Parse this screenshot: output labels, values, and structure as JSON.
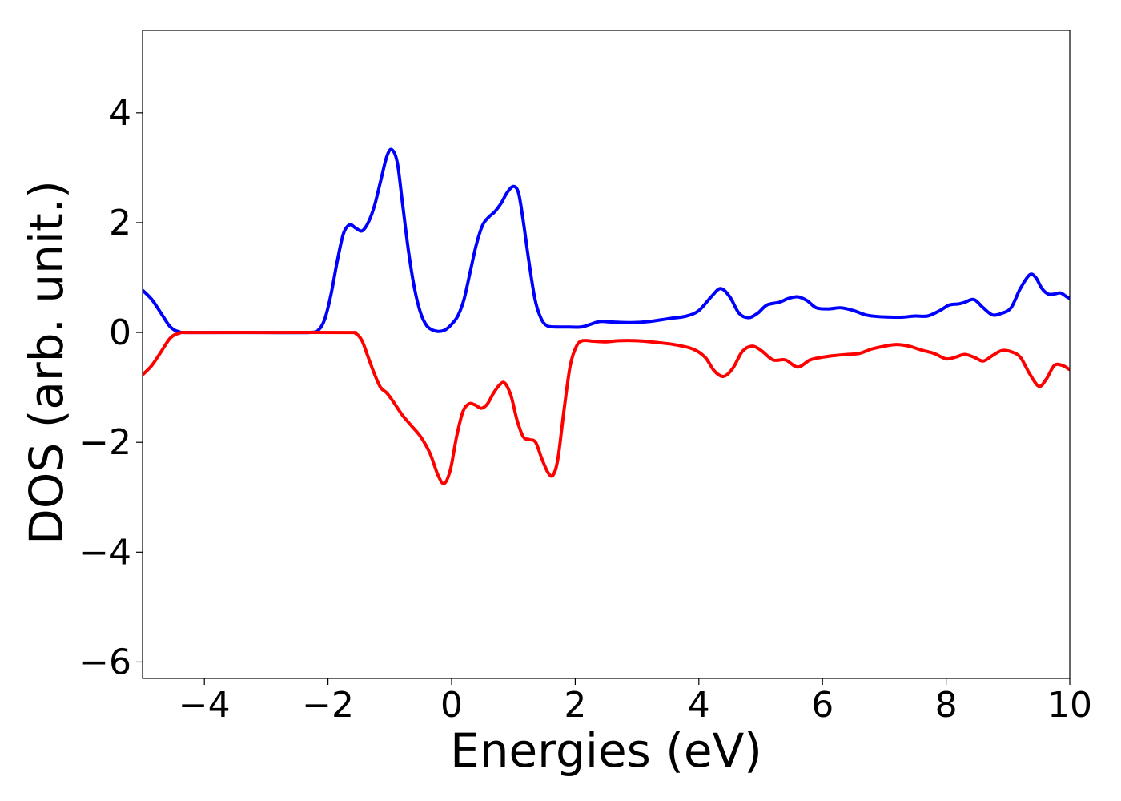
{
  "chart_data": {
    "type": "line",
    "xlabel": "Energies (eV)",
    "ylabel": "DOS (arb. unit.)",
    "xlim": [
      -5,
      10
    ],
    "ylim": [
      -6.3,
      5.5
    ],
    "xticks": [
      -4,
      -2,
      0,
      2,
      4,
      6,
      8,
      10
    ],
    "xtick_labels": [
      "−4",
      "−2",
      "0",
      "2",
      "4",
      "6",
      "8",
      "10"
    ],
    "yticks": [
      4,
      2,
      0,
      -2,
      -4,
      -6
    ],
    "ytick_labels": [
      "4",
      "2",
      "0",
      "−2",
      "−4",
      "−6"
    ],
    "grid": false,
    "series": [
      {
        "color": "#0000ff",
        "points": [
          [
            -5.0,
            0.77
          ],
          [
            -4.85,
            0.6
          ],
          [
            -4.7,
            0.35
          ],
          [
            -4.55,
            0.1
          ],
          [
            -4.4,
            0.01
          ],
          [
            -4.2,
            0.0
          ],
          [
            -3.0,
            0.0
          ],
          [
            -2.3,
            0.0
          ],
          [
            -2.15,
            0.05
          ],
          [
            -2.05,
            0.25
          ],
          [
            -1.95,
            0.7
          ],
          [
            -1.85,
            1.3
          ],
          [
            -1.75,
            1.8
          ],
          [
            -1.65,
            1.96
          ],
          [
            -1.55,
            1.9
          ],
          [
            -1.45,
            1.85
          ],
          [
            -1.35,
            2.0
          ],
          [
            -1.25,
            2.3
          ],
          [
            -1.15,
            2.75
          ],
          [
            -1.05,
            3.2
          ],
          [
            -0.97,
            3.33
          ],
          [
            -0.88,
            3.1
          ],
          [
            -0.8,
            2.4
          ],
          [
            -0.7,
            1.5
          ],
          [
            -0.6,
            0.8
          ],
          [
            -0.5,
            0.35
          ],
          [
            -0.4,
            0.12
          ],
          [
            -0.3,
            0.04
          ],
          [
            -0.2,
            0.02
          ],
          [
            -0.1,
            0.05
          ],
          [
            0.0,
            0.15
          ],
          [
            0.1,
            0.3
          ],
          [
            0.2,
            0.6
          ],
          [
            0.3,
            1.1
          ],
          [
            0.4,
            1.6
          ],
          [
            0.5,
            1.95
          ],
          [
            0.6,
            2.1
          ],
          [
            0.7,
            2.2
          ],
          [
            0.8,
            2.35
          ],
          [
            0.9,
            2.55
          ],
          [
            1.0,
            2.66
          ],
          [
            1.08,
            2.55
          ],
          [
            1.15,
            2.1
          ],
          [
            1.25,
            1.3
          ],
          [
            1.35,
            0.6
          ],
          [
            1.45,
            0.25
          ],
          [
            1.55,
            0.12
          ],
          [
            1.7,
            0.1
          ],
          [
            1.9,
            0.1
          ],
          [
            2.1,
            0.1
          ],
          [
            2.25,
            0.15
          ],
          [
            2.4,
            0.2
          ],
          [
            2.6,
            0.19
          ],
          [
            2.9,
            0.18
          ],
          [
            3.2,
            0.2
          ],
          [
            3.5,
            0.25
          ],
          [
            3.8,
            0.3
          ],
          [
            4.0,
            0.4
          ],
          [
            4.2,
            0.65
          ],
          [
            4.35,
            0.8
          ],
          [
            4.5,
            0.65
          ],
          [
            4.65,
            0.35
          ],
          [
            4.8,
            0.27
          ],
          [
            4.95,
            0.35
          ],
          [
            5.1,
            0.5
          ],
          [
            5.3,
            0.55
          ],
          [
            5.45,
            0.62
          ],
          [
            5.6,
            0.65
          ],
          [
            5.75,
            0.58
          ],
          [
            5.9,
            0.45
          ],
          [
            6.1,
            0.43
          ],
          [
            6.3,
            0.45
          ],
          [
            6.5,
            0.4
          ],
          [
            6.7,
            0.32
          ],
          [
            6.9,
            0.29
          ],
          [
            7.1,
            0.28
          ],
          [
            7.3,
            0.28
          ],
          [
            7.5,
            0.3
          ],
          [
            7.7,
            0.3
          ],
          [
            7.9,
            0.4
          ],
          [
            8.05,
            0.5
          ],
          [
            8.2,
            0.52
          ],
          [
            8.3,
            0.55
          ],
          [
            8.45,
            0.6
          ],
          [
            8.6,
            0.45
          ],
          [
            8.75,
            0.32
          ],
          [
            8.9,
            0.35
          ],
          [
            9.05,
            0.45
          ],
          [
            9.2,
            0.8
          ],
          [
            9.35,
            1.05
          ],
          [
            9.45,
            1.0
          ],
          [
            9.55,
            0.8
          ],
          [
            9.65,
            0.7
          ],
          [
            9.75,
            0.7
          ],
          [
            9.85,
            0.72
          ],
          [
            9.95,
            0.65
          ],
          [
            10.0,
            0.62
          ]
        ]
      },
      {
        "color": "#ff0000",
        "points": [
          [
            -5.0,
            -0.77
          ],
          [
            -4.85,
            -0.6
          ],
          [
            -4.7,
            -0.35
          ],
          [
            -4.55,
            -0.1
          ],
          [
            -4.4,
            -0.01
          ],
          [
            -4.2,
            0.0
          ],
          [
            -3.0,
            0.0
          ],
          [
            -1.7,
            0.0
          ],
          [
            -1.55,
            -0.02
          ],
          [
            -1.45,
            -0.15
          ],
          [
            -1.35,
            -0.45
          ],
          [
            -1.25,
            -0.75
          ],
          [
            -1.15,
            -1.0
          ],
          [
            -1.05,
            -1.1
          ],
          [
            -0.95,
            -1.25
          ],
          [
            -0.8,
            -1.5
          ],
          [
            -0.65,
            -1.7
          ],
          [
            -0.5,
            -1.9
          ],
          [
            -0.35,
            -2.2
          ],
          [
            -0.22,
            -2.6
          ],
          [
            -0.12,
            -2.75
          ],
          [
            -0.02,
            -2.5
          ],
          [
            0.08,
            -1.9
          ],
          [
            0.18,
            -1.45
          ],
          [
            0.28,
            -1.3
          ],
          [
            0.38,
            -1.32
          ],
          [
            0.48,
            -1.38
          ],
          [
            0.58,
            -1.3
          ],
          [
            0.68,
            -1.1
          ],
          [
            0.78,
            -0.95
          ],
          [
            0.86,
            -0.92
          ],
          [
            0.96,
            -1.15
          ],
          [
            1.06,
            -1.6
          ],
          [
            1.16,
            -1.9
          ],
          [
            1.26,
            -1.95
          ],
          [
            1.36,
            -2.0
          ],
          [
            1.46,
            -2.3
          ],
          [
            1.56,
            -2.55
          ],
          [
            1.64,
            -2.6
          ],
          [
            1.72,
            -2.3
          ],
          [
            1.82,
            -1.4
          ],
          [
            1.92,
            -0.6
          ],
          [
            2.02,
            -0.25
          ],
          [
            2.12,
            -0.15
          ],
          [
            2.3,
            -0.16
          ],
          [
            2.5,
            -0.17
          ],
          [
            2.7,
            -0.15
          ],
          [
            3.0,
            -0.15
          ],
          [
            3.3,
            -0.18
          ],
          [
            3.6,
            -0.22
          ],
          [
            3.9,
            -0.3
          ],
          [
            4.1,
            -0.45
          ],
          [
            4.25,
            -0.7
          ],
          [
            4.4,
            -0.8
          ],
          [
            4.55,
            -0.65
          ],
          [
            4.7,
            -0.35
          ],
          [
            4.85,
            -0.25
          ],
          [
            5.0,
            -0.32
          ],
          [
            5.2,
            -0.5
          ],
          [
            5.4,
            -0.5
          ],
          [
            5.6,
            -0.63
          ],
          [
            5.8,
            -0.5
          ],
          [
            6.0,
            -0.45
          ],
          [
            6.2,
            -0.42
          ],
          [
            6.4,
            -0.4
          ],
          [
            6.6,
            -0.38
          ],
          [
            6.8,
            -0.3
          ],
          [
            7.0,
            -0.25
          ],
          [
            7.2,
            -0.22
          ],
          [
            7.4,
            -0.25
          ],
          [
            7.6,
            -0.32
          ],
          [
            7.8,
            -0.38
          ],
          [
            8.0,
            -0.48
          ],
          [
            8.15,
            -0.45
          ],
          [
            8.3,
            -0.4
          ],
          [
            8.45,
            -0.45
          ],
          [
            8.6,
            -0.52
          ],
          [
            8.75,
            -0.42
          ],
          [
            8.9,
            -0.33
          ],
          [
            9.05,
            -0.35
          ],
          [
            9.2,
            -0.45
          ],
          [
            9.35,
            -0.75
          ],
          [
            9.5,
            -0.98
          ],
          [
            9.62,
            -0.85
          ],
          [
            9.75,
            -0.6
          ],
          [
            9.88,
            -0.6
          ],
          [
            10.0,
            -0.68
          ]
        ]
      }
    ]
  }
}
